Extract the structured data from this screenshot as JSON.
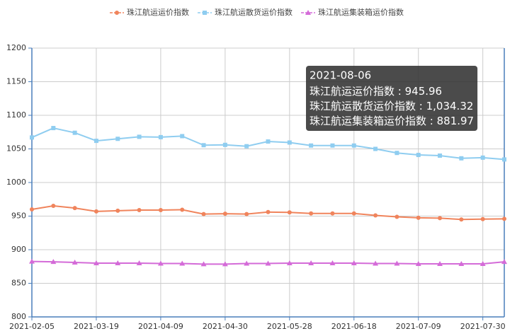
{
  "chart_data": {
    "type": "line",
    "categories": [
      "2021-02-05",
      null,
      null,
      "2021-03-19",
      null,
      null,
      "2021-04-09",
      null,
      null,
      "2021-04-30",
      null,
      null,
      "2021-05-28",
      null,
      null,
      "2021-06-18",
      null,
      null,
      "2021-07-09",
      null,
      null,
      "2021-07-30",
      null
    ],
    "series": [
      {
        "name": "珠江航运运价指数",
        "color": "#f0845c",
        "marker": "circle",
        "values": [
          960,
          965.3,
          962,
          957,
          958,
          959,
          959,
          959.5,
          953,
          953.5,
          953,
          956,
          955.5,
          954,
          954,
          954,
          951,
          949,
          947.5,
          947,
          945,
          945.5,
          945.96
        ]
      },
      {
        "name": "珠江航运散货运价指数",
        "color": "#8fcdf0",
        "marker": "square",
        "values": [
          1067,
          1081,
          1074,
          1062,
          1065,
          1068,
          1067.5,
          1069,
          1055.5,
          1056,
          1054,
          1061,
          1059.5,
          1055,
          1055,
          1055,
          1050,
          1044,
          1041,
          1040,
          1036,
          1037,
          1034.32
        ]
      },
      {
        "name": "珠江航运集装箱运价指数",
        "color": "#d46bd8",
        "marker": "triangle",
        "values": [
          882.5,
          882,
          881,
          880,
          880,
          880,
          879.5,
          879.5,
          878.5,
          878.5,
          879.5,
          879.5,
          880,
          880,
          880,
          880,
          879.5,
          879.5,
          879,
          879,
          879,
          879,
          881.97
        ]
      }
    ],
    "ylim": [
      800,
      1200
    ],
    "yticks": [
      800,
      850,
      900,
      950,
      1000,
      1050,
      1100,
      1150,
      1200
    ],
    "grid": true,
    "legend": "top",
    "tooltip": {
      "title": "2021-08-06",
      "labels": [
        "945.96",
        "1,034.32",
        "881.97"
      ]
    }
  }
}
